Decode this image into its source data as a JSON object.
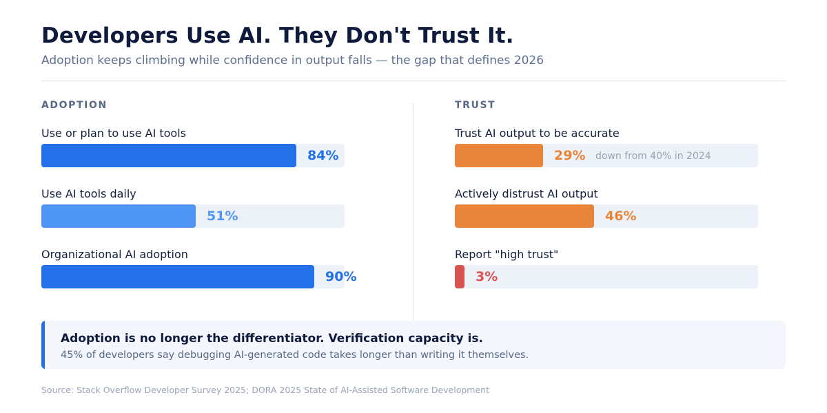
{
  "header": {
    "title": "Developers Use AI. They Don't Trust It.",
    "subtitle": "Adoption keeps climbing while confidence in output falls — the gap that defines 2026"
  },
  "colors": {
    "primary_blue": "#2370e8",
    "light_blue": "#4f95f5",
    "orange": "#e8853a",
    "red": "#d9534f",
    "track": "#edf1f8"
  },
  "chart_data": [
    {
      "type": "bar",
      "orientation": "horizontal",
      "title": "ADOPTION",
      "categories": [
        "Use or plan to use AI tools",
        "Use AI tools daily",
        "Organizational AI adoption"
      ],
      "values": [
        84,
        51,
        90
      ],
      "value_labels": [
        "84%",
        "51%",
        "90%"
      ],
      "unit": "%",
      "xlim": [
        0,
        100
      ],
      "bar_colors": [
        "#2370e8",
        "#4f95f5",
        "#2370e8"
      ]
    },
    {
      "type": "bar",
      "orientation": "horizontal",
      "title": "TRUST",
      "categories": [
        "Trust AI output to be accurate",
        "Actively distrust AI output",
        "Report \"high trust\""
      ],
      "values": [
        29,
        46,
        3
      ],
      "value_labels": [
        "29%",
        "46%",
        "3%"
      ],
      "unit": "%",
      "xlim": [
        0,
        100
      ],
      "bar_colors": [
        "#e8853a",
        "#e8853a",
        "#d9534f"
      ],
      "annotations": [
        "down from 40% in 2024",
        "",
        ""
      ]
    }
  ],
  "callout": {
    "headline": "Adoption is no longer the differentiator. Verification capacity is.",
    "body": "45% of developers say debugging AI-generated code takes longer than writing it themselves."
  },
  "footer": {
    "source": "Source: Stack Overflow Developer Survey 2025; DORA 2025 State of AI-Assisted Software Development"
  }
}
